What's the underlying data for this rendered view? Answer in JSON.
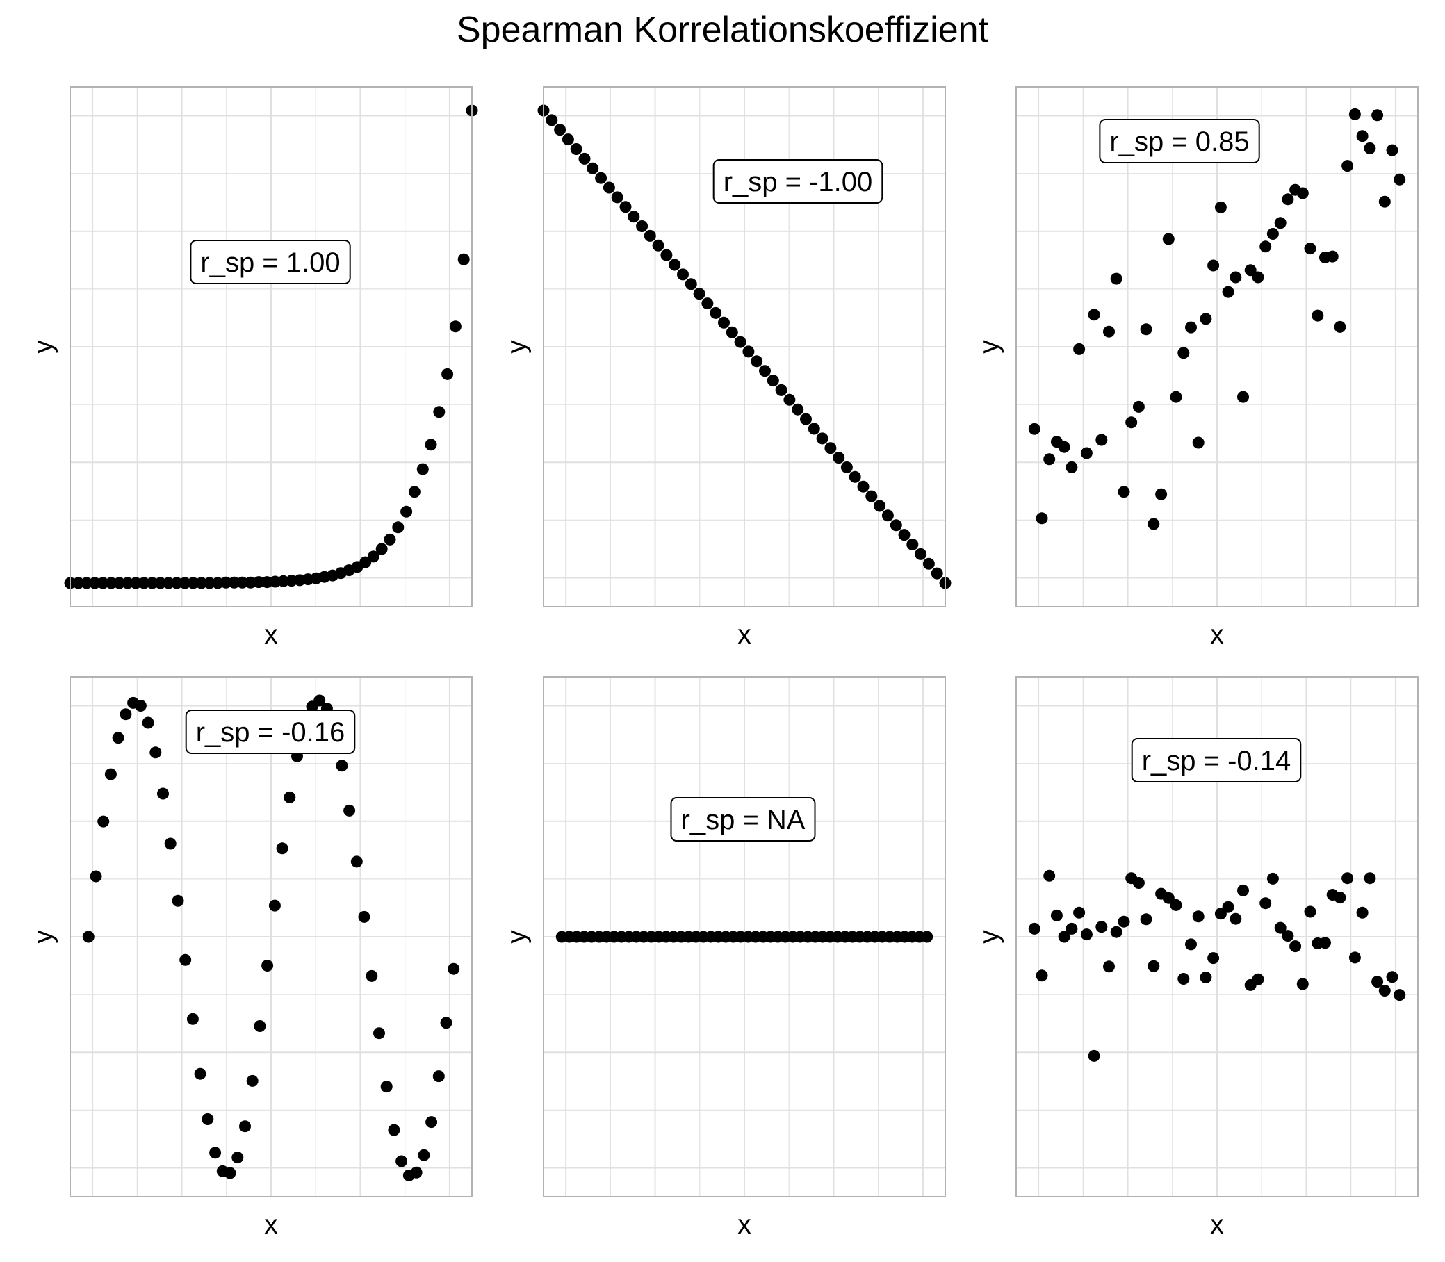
{
  "title": "Spearman Korrelationskoeffizient",
  "colors": {
    "point": "#000000",
    "grid": "#e0e0e0",
    "border": "#b3b3b3",
    "background": "#ffffff"
  },
  "chart_data": [
    {
      "type": "scatter",
      "xlabel": "x",
      "ylabel": "y",
      "annotation": "r_sp = 1.00",
      "xlim": [
        0,
        1
      ],
      "ylim": [
        -0.05,
        1.05
      ],
      "x": [
        0.0,
        0.0204,
        0.0408,
        0.0612,
        0.0816,
        0.102,
        0.1224,
        0.1429,
        0.1633,
        0.1837,
        0.2041,
        0.2245,
        0.2449,
        0.2653,
        0.2857,
        0.3061,
        0.3265,
        0.3469,
        0.3673,
        0.3878,
        0.4082,
        0.4286,
        0.449,
        0.4694,
        0.4898,
        0.5102,
        0.5306,
        0.551,
        0.5714,
        0.5918,
        0.6122,
        0.6327,
        0.6531,
        0.6735,
        0.6939,
        0.7143,
        0.7347,
        0.7551,
        0.7755,
        0.7959,
        0.8163,
        0.8367,
        0.8571,
        0.8776,
        0.898,
        0.9184,
        0.9388,
        0.9592,
        0.9796,
        1.0
      ],
      "y": [
        0.0,
        0.0,
        0.0,
        0.0,
        0.0,
        0.0,
        0.0,
        0.0,
        0.0,
        0.0,
        0.0,
        0.0,
        0.0,
        0.0,
        0.0,
        0.0,
        0.0,
        0.0,
        0.0,
        0.001,
        0.001,
        0.001,
        0.001,
        0.002,
        0.002,
        0.003,
        0.004,
        0.005,
        0.006,
        0.008,
        0.01,
        0.013,
        0.016,
        0.021,
        0.027,
        0.034,
        0.044,
        0.056,
        0.072,
        0.092,
        0.118,
        0.151,
        0.193,
        0.241,
        0.293,
        0.362,
        0.442,
        0.543,
        0.685,
        1.0
      ]
    },
    {
      "type": "scatter",
      "xlabel": "x",
      "ylabel": "y",
      "annotation": "r_sp = -1.00",
      "xlim": [
        0,
        1
      ],
      "ylim": [
        -0.05,
        1.05
      ],
      "x": [
        0.0,
        0.0204,
        0.0408,
        0.0612,
        0.0816,
        0.102,
        0.1224,
        0.1429,
        0.1633,
        0.1837,
        0.2041,
        0.2245,
        0.2449,
        0.2653,
        0.2857,
        0.3061,
        0.3265,
        0.3469,
        0.3673,
        0.3878,
        0.4082,
        0.4286,
        0.449,
        0.4694,
        0.4898,
        0.5102,
        0.5306,
        0.551,
        0.5714,
        0.5918,
        0.6122,
        0.6327,
        0.6531,
        0.6735,
        0.6939,
        0.7143,
        0.7347,
        0.7551,
        0.7755,
        0.7959,
        0.8163,
        0.8367,
        0.8571,
        0.8776,
        0.898,
        0.9184,
        0.9388,
        0.9592,
        0.9796,
        1.0
      ],
      "y": [
        1.0,
        0.9796,
        0.9592,
        0.9388,
        0.9184,
        0.898,
        0.8776,
        0.8571,
        0.8367,
        0.8163,
        0.7959,
        0.7755,
        0.7551,
        0.7347,
        0.7143,
        0.6939,
        0.6735,
        0.6531,
        0.6327,
        0.6122,
        0.5918,
        0.5714,
        0.551,
        0.5306,
        0.5102,
        0.4898,
        0.4694,
        0.449,
        0.4286,
        0.4082,
        0.3878,
        0.3673,
        0.3469,
        0.3265,
        0.3061,
        0.2857,
        0.2653,
        0.2449,
        0.2245,
        0.2041,
        0.1837,
        0.1633,
        0.1429,
        0.1224,
        0.102,
        0.0816,
        0.0612,
        0.0408,
        0.0204,
        0.0
      ]
    },
    {
      "type": "scatter",
      "xlabel": "x",
      "ylabel": "y",
      "annotation": "r_sp = 0.85",
      "xlim": [
        -0.05,
        1.05
      ],
      "ylim": [
        -0.05,
        1.05
      ],
      "x": [
        0.0,
        0.0204,
        0.0408,
        0.0612,
        0.0816,
        0.102,
        0.1224,
        0.1429,
        0.1633,
        0.1837,
        0.2041,
        0.2245,
        0.2449,
        0.2653,
        0.2857,
        0.3061,
        0.3265,
        0.3469,
        0.3673,
        0.3878,
        0.4082,
        0.4286,
        0.449,
        0.4694,
        0.4898,
        0.5102,
        0.5306,
        0.551,
        0.5714,
        0.5918,
        0.6122,
        0.6327,
        0.6531,
        0.6735,
        0.6939,
        0.7143,
        0.7347,
        0.7551,
        0.7755,
        0.7959,
        0.8163,
        0.8367,
        0.8571,
        0.8776,
        0.898,
        0.9184,
        0.9388,
        0.9592,
        0.9796,
        1.0
      ],
      "y": [
        0.326,
        0.137,
        0.262,
        0.299,
        0.288,
        0.245,
        0.495,
        0.275,
        0.568,
        0.303,
        0.532,
        0.644,
        0.193,
        0.34,
        0.373,
        0.537,
        0.125,
        0.188,
        0.728,
        0.394,
        0.487,
        0.541,
        0.297,
        0.559,
        0.672,
        0.795,
        0.616,
        0.647,
        0.394,
        0.662,
        0.647,
        0.712,
        0.739,
        0.762,
        0.812,
        0.832,
        0.825,
        0.708,
        0.566,
        0.689,
        0.691,
        0.542,
        0.883,
        0.992,
        0.946,
        0.92,
        0.99,
        0.807,
        0.916,
        0.854
      ]
    },
    {
      "type": "scatter",
      "xlabel": "x",
      "ylabel": "y",
      "annotation": "r_sp = -0.16",
      "xlim": [
        -0.05,
        1.05
      ],
      "ylim": [
        -0.05,
        1.05
      ],
      "x": [
        0.0,
        0.0204,
        0.0408,
        0.0612,
        0.0816,
        0.102,
        0.1224,
        0.1429,
        0.1633,
        0.1837,
        0.2041,
        0.2245,
        0.2449,
        0.2653,
        0.2857,
        0.3061,
        0.3265,
        0.3469,
        0.3673,
        0.3878,
        0.4082,
        0.4286,
        0.449,
        0.4694,
        0.4898,
        0.5102,
        0.5306,
        0.551,
        0.5714,
        0.5918,
        0.6122,
        0.6327,
        0.6531,
        0.6735,
        0.6939,
        0.7143,
        0.7347,
        0.7551,
        0.7755,
        0.7959,
        0.8163,
        0.8367,
        0.8571,
        0.8776,
        0.898,
        0.9184,
        0.9388,
        0.9592,
        0.9796,
        1.0
      ],
      "y": [
        0.5,
        0.628,
        0.744,
        0.844,
        0.921,
        0.971,
        0.995,
        0.989,
        0.953,
        0.89,
        0.803,
        0.697,
        0.576,
        0.451,
        0.326,
        0.21,
        0.114,
        0.043,
        0.004,
        0.0,
        0.033,
        0.099,
        0.195,
        0.311,
        0.439,
        0.566,
        0.687,
        0.795,
        0.882,
        0.948,
        0.987,
        1.0,
        0.983,
        0.935,
        0.862,
        0.767,
        0.659,
        0.542,
        0.417,
        0.296,
        0.183,
        0.091,
        0.025,
        -0.005,
        0.001,
        0.038,
        0.108,
        0.205,
        0.318,
        0.432
      ]
    },
    {
      "type": "scatter",
      "xlabel": "x",
      "ylabel": "y",
      "annotation": "r_sp = NA",
      "xlim": [
        -0.05,
        1.05
      ],
      "ylim": [
        -0.05,
        1.05
      ],
      "x": [
        0.0,
        0.0204,
        0.0408,
        0.0612,
        0.0816,
        0.102,
        0.1224,
        0.1429,
        0.1633,
        0.1837,
        0.2041,
        0.2245,
        0.2449,
        0.2653,
        0.2857,
        0.3061,
        0.3265,
        0.3469,
        0.3673,
        0.3878,
        0.4082,
        0.4286,
        0.449,
        0.4694,
        0.4898,
        0.5102,
        0.5306,
        0.551,
        0.5714,
        0.5918,
        0.6122,
        0.6327,
        0.6531,
        0.6735,
        0.6939,
        0.7143,
        0.7347,
        0.7551,
        0.7755,
        0.7959,
        0.8163,
        0.8367,
        0.8571,
        0.8776,
        0.898,
        0.9184,
        0.9388,
        0.9592,
        0.9796,
        1.0
      ],
      "y": [
        0.5,
        0.5,
        0.5,
        0.5,
        0.5,
        0.5,
        0.5,
        0.5,
        0.5,
        0.5,
        0.5,
        0.5,
        0.5,
        0.5,
        0.5,
        0.5,
        0.5,
        0.5,
        0.5,
        0.5,
        0.5,
        0.5,
        0.5,
        0.5,
        0.5,
        0.5,
        0.5,
        0.5,
        0.5,
        0.5,
        0.5,
        0.5,
        0.5,
        0.5,
        0.5,
        0.5,
        0.5,
        0.5,
        0.5,
        0.5,
        0.5,
        0.5,
        0.5,
        0.5,
        0.5,
        0.5,
        0.5,
        0.5,
        0.5,
        0.5
      ]
    },
    {
      "type": "scatter",
      "xlabel": "x",
      "ylabel": "y",
      "annotation": "r_sp = -0.14",
      "xlim": [
        -0.05,
        1.05
      ],
      "ylim": [
        -0.05,
        1.05
      ],
      "x": [
        0.0,
        0.0204,
        0.0408,
        0.0612,
        0.0816,
        0.102,
        0.1224,
        0.1429,
        0.1633,
        0.1837,
        0.2041,
        0.2245,
        0.2449,
        0.2653,
        0.2857,
        0.3061,
        0.3265,
        0.3469,
        0.3673,
        0.3878,
        0.4082,
        0.4286,
        0.449,
        0.4694,
        0.4898,
        0.5102,
        0.5306,
        0.551,
        0.5714,
        0.5918,
        0.6122,
        0.6327,
        0.6531,
        0.6735,
        0.6939,
        0.7143,
        0.7347,
        0.7551,
        0.7755,
        0.7959,
        0.8163,
        0.8367,
        0.8571,
        0.8776,
        0.898,
        0.9184,
        0.9388,
        0.9592,
        0.9796,
        1.0
      ],
      "y": [
        0.517,
        0.418,
        0.629,
        0.545,
        0.5,
        0.517,
        0.551,
        0.505,
        0.248,
        0.521,
        0.437,
        0.51,
        0.532,
        0.624,
        0.614,
        0.537,
        0.438,
        0.591,
        0.582,
        0.567,
        0.411,
        0.484,
        0.543,
        0.414,
        0.455,
        0.549,
        0.563,
        0.538,
        0.598,
        0.398,
        0.41,
        0.571,
        0.623,
        0.519,
        0.502,
        0.48,
        0.4,
        0.553,
        0.486,
        0.487,
        0.589,
        0.583,
        0.624,
        0.456,
        0.551,
        0.624,
        0.405,
        0.386,
        0.415,
        0.377
      ]
    }
  ]
}
